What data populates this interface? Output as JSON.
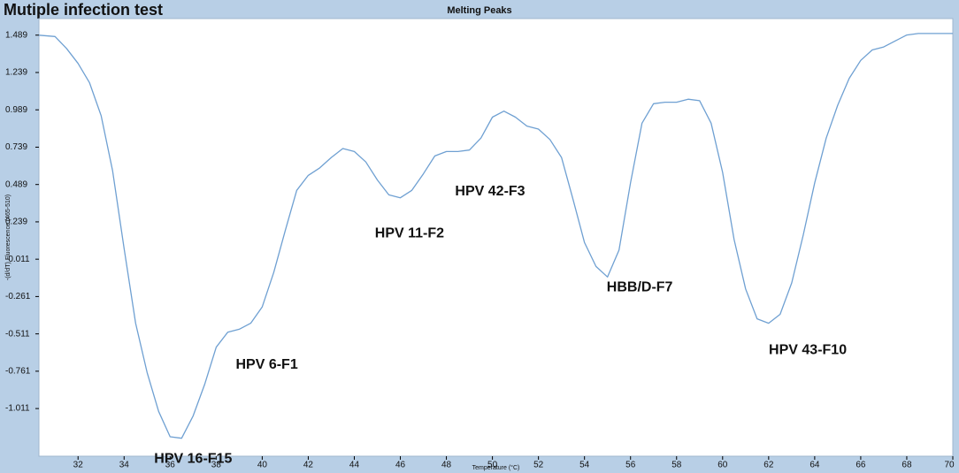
{
  "header": {
    "figure_title": "Mutiple infection test"
  },
  "colors": {
    "frame_bg": "#b8cfe6",
    "plot_bg": "#ffffff",
    "line": "#6fa0d2",
    "axis": "#000000"
  },
  "chart_data": {
    "type": "line",
    "title": "Melting Peaks",
    "xlabel": "Temperature (°C)",
    "ylabel": "-(d/dT) Fluorescence (465-510)",
    "xlim": [
      30.3,
      70
    ],
    "ylim": [
      -1.33,
      1.6
    ],
    "xticks": [
      32,
      34,
      36,
      38,
      40,
      42,
      44,
      46,
      48,
      50,
      52,
      54,
      56,
      58,
      60,
      62,
      64,
      66,
      68,
      70
    ],
    "yticks": [
      1.489,
      1.239,
      0.989,
      0.739,
      0.489,
      0.239,
      -0.011,
      -0.261,
      -0.511,
      -0.761,
      -1.011
    ],
    "ytick_labels": [
      "1.489",
      "1.239",
      "0.989",
      "0.739",
      "0.489",
      "0.239",
      "-0.011",
      "-0.261",
      "-0.511",
      "-0.761",
      "-1.011"
    ],
    "grid": false,
    "series": [
      {
        "x": [
          30.3,
          31.0,
          31.5,
          32.0,
          32.5,
          33.0,
          33.5,
          34.0,
          34.5,
          35.0,
          35.5,
          36.0,
          36.5,
          37.0,
          37.5,
          38.0,
          38.5,
          39.0,
          39.5,
          40.0,
          40.5,
          41.0,
          41.5,
          42.0,
          42.5,
          43.0,
          43.5,
          44.0,
          44.5,
          45.0,
          45.5,
          46.0,
          46.5,
          47.0,
          47.5,
          48.0,
          48.5,
          49.0,
          49.5,
          50.0,
          50.5,
          51.0,
          51.5,
          52.0,
          52.5,
          53.0,
          53.5,
          54.0,
          54.5,
          55.0,
          55.5,
          56.0,
          56.5,
          57.0,
          57.5,
          58.0,
          58.5,
          59.0,
          59.5,
          60.0,
          60.5,
          61.0,
          61.5,
          62.0,
          62.5,
          63.0,
          63.5,
          64.0,
          64.5,
          65.0,
          65.5,
          66.0,
          66.5,
          67.0,
          67.5,
          68.0,
          68.5,
          69.0,
          69.5,
          70.0
        ],
        "y": [
          1.489,
          1.48,
          1.4,
          1.3,
          1.17,
          0.95,
          0.58,
          0.06,
          -0.44,
          -0.77,
          -1.03,
          -1.2,
          -1.21,
          -1.06,
          -0.85,
          -0.6,
          -0.5,
          -0.48,
          -0.44,
          -0.33,
          -0.1,
          0.18,
          0.45,
          0.55,
          0.6,
          0.67,
          0.73,
          0.71,
          0.64,
          0.52,
          0.42,
          0.4,
          0.45,
          0.56,
          0.68,
          0.71,
          0.71,
          0.72,
          0.8,
          0.94,
          0.98,
          0.94,
          0.88,
          0.86,
          0.79,
          0.67,
          0.39,
          0.1,
          -0.06,
          -0.13,
          0.05,
          0.5,
          0.9,
          1.03,
          1.04,
          1.04,
          1.06,
          1.05,
          0.9,
          0.57,
          0.12,
          -0.21,
          -0.41,
          -0.44,
          -0.38,
          -0.17,
          0.15,
          0.5,
          0.8,
          1.02,
          1.2,
          1.32,
          1.39,
          1.41,
          1.45,
          1.49,
          1.5,
          1.5,
          1.5,
          1.5
        ]
      }
    ],
    "annotations": [
      {
        "text": "HPV 16-F15",
        "x": 37.0,
        "y": -1.35
      },
      {
        "text": "HPV 6-F1",
        "x": 40.2,
        "y": -0.72
      },
      {
        "text": "HPV 11-F2",
        "x": 46.4,
        "y": 0.16
      },
      {
        "text": "HPV 42-F3",
        "x": 49.9,
        "y": 0.44
      },
      {
        "text": "HBB/D-F7",
        "x": 56.4,
        "y": -0.2
      },
      {
        "text": "HPV 43-F10",
        "x": 63.7,
        "y": -0.62
      }
    ]
  }
}
